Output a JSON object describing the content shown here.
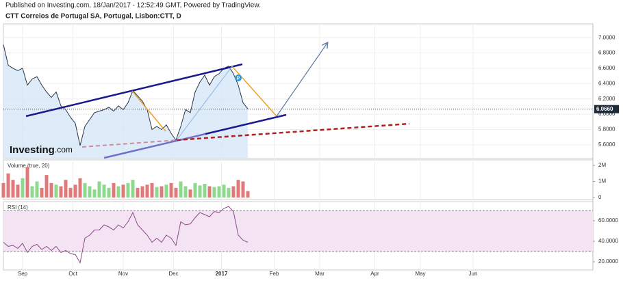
{
  "header": {
    "published": "Published on Investing.com, 18/Jan/2017 - 12:52:49 GMT, Powered by TradingView."
  },
  "logo": {
    "brand": "Investing",
    "suffix": ".com"
  },
  "chart_data": [
    {
      "type": "line",
      "title": "CTT Correios de Portugal SA, Portugal, Lisbon:CTT, D",
      "color": "#2b3445",
      "fill": "#d6e6f7",
      "x": [
        0,
        2,
        4,
        6,
        8,
        10,
        12,
        14,
        16,
        18,
        20,
        22,
        24,
        26,
        28,
        30,
        32,
        34,
        36,
        38,
        40,
        42,
        44,
        46,
        48,
        50,
        52,
        54,
        56,
        58,
        60,
        62,
        64,
        66,
        68,
        70,
        72,
        74,
        76,
        78,
        80,
        82,
        84,
        86,
        88,
        90,
        92,
        94,
        96,
        98,
        100,
        102
      ],
      "values": [
        6.91,
        6.64,
        6.6,
        6.57,
        6.6,
        6.38,
        6.46,
        6.49,
        6.38,
        6.29,
        6.22,
        6.29,
        6.11,
        6.06,
        5.96,
        5.88,
        5.59,
        5.84,
        5.93,
        6.02,
        6.04,
        6.06,
        6.09,
        6.04,
        6.11,
        6.06,
        6.15,
        6.31,
        6.24,
        6.17,
        6.06,
        5.8,
        5.84,
        5.8,
        5.86,
        5.75,
        5.66,
        5.84,
        6.06,
        6.02,
        6.29,
        6.42,
        6.51,
        6.38,
        6.49,
        6.53,
        6.6,
        6.63,
        6.53,
        6.38,
        6.15,
        6.07
      ],
      "xlim": [
        0,
        246
      ],
      "xticks": [
        {
          "value": 8,
          "label": "Sep"
        },
        {
          "value": 29,
          "label": "Oct"
        },
        {
          "value": 50,
          "label": "Nov"
        },
        {
          "value": 71,
          "label": "Dec"
        },
        {
          "value": 91,
          "label": "2017"
        },
        {
          "value": 113,
          "label": "Feb"
        },
        {
          "value": 132,
          "label": "Mar"
        },
        {
          "value": 155,
          "label": "Apr"
        },
        {
          "value": 174,
          "label": "May"
        },
        {
          "value": 196,
          "label": "Jun"
        }
      ],
      "ylim": [
        5.42,
        7.18
      ],
      "yticks": [
        {
          "value": 5.6,
          "label": "5.6000"
        },
        {
          "value": 5.8,
          "label": "5.8000"
        },
        {
          "value": 6.0,
          "label": "6.0000"
        },
        {
          "value": 6.2,
          "label": "6.2000"
        },
        {
          "value": 6.4,
          "label": "6.4000"
        },
        {
          "value": 6.6,
          "label": "6.6000"
        },
        {
          "value": 6.8,
          "label": "6.8000"
        },
        {
          "value": 7.0,
          "label": "7.0000"
        }
      ],
      "last_price": {
        "value": 6.066,
        "label": "6.0660"
      },
      "event_marker": "P",
      "grid": true
    },
    {
      "type": "bar",
      "title": "Volume (true, 20)",
      "up_color": "#8fd88f",
      "down_color": "#e07a7a",
      "values": [
        900000,
        1500000,
        1100000,
        800000,
        1200000,
        1900000,
        700000,
        1000000,
        600000,
        1400000,
        900000,
        800000,
        700000,
        1100000,
        600000,
        800000,
        1200000,
        900000,
        700000,
        500000,
        1000000,
        800000,
        600000,
        900000,
        700000,
        800000,
        900000,
        1100000,
        600000,
        700000,
        800000,
        900000,
        650000,
        700000,
        800000,
        900000,
        600000,
        1000000,
        700000,
        500000,
        900000,
        750000,
        850000,
        700000,
        650000,
        700000,
        800000,
        600000,
        700000,
        1100000,
        1000000,
        400000
      ],
      "ylim": [
        0,
        2340000
      ],
      "yticks": [
        0,
        {
          "value": 1000000,
          "label": "1M"
        },
        {
          "value": 2000000,
          "label": "2M"
        }
      ]
    },
    {
      "type": "line",
      "title": "RSI (14)",
      "color": "#8a4a8a",
      "band_color": "#f3e3f3",
      "bands": [
        30,
        70
      ],
      "values": [
        39,
        35,
        36,
        33,
        38,
        29,
        35,
        37,
        32,
        35,
        31,
        35,
        29,
        31,
        28,
        27,
        19,
        43,
        46,
        51,
        51,
        56,
        54,
        51,
        56,
        53,
        59,
        68,
        56,
        51,
        46,
        39,
        43,
        39,
        46,
        43,
        36,
        59,
        56,
        57,
        63,
        68,
        66,
        64,
        69,
        68,
        72,
        74,
        69,
        46,
        41,
        39
      ],
      "ylim": [
        12,
        78.7
      ],
      "yticks": [
        {
          "value": 20,
          "label": "20.0000"
        },
        {
          "value": 40,
          "label": "40.0000"
        },
        {
          "value": 60,
          "label": "60.0000"
        }
      ]
    }
  ]
}
